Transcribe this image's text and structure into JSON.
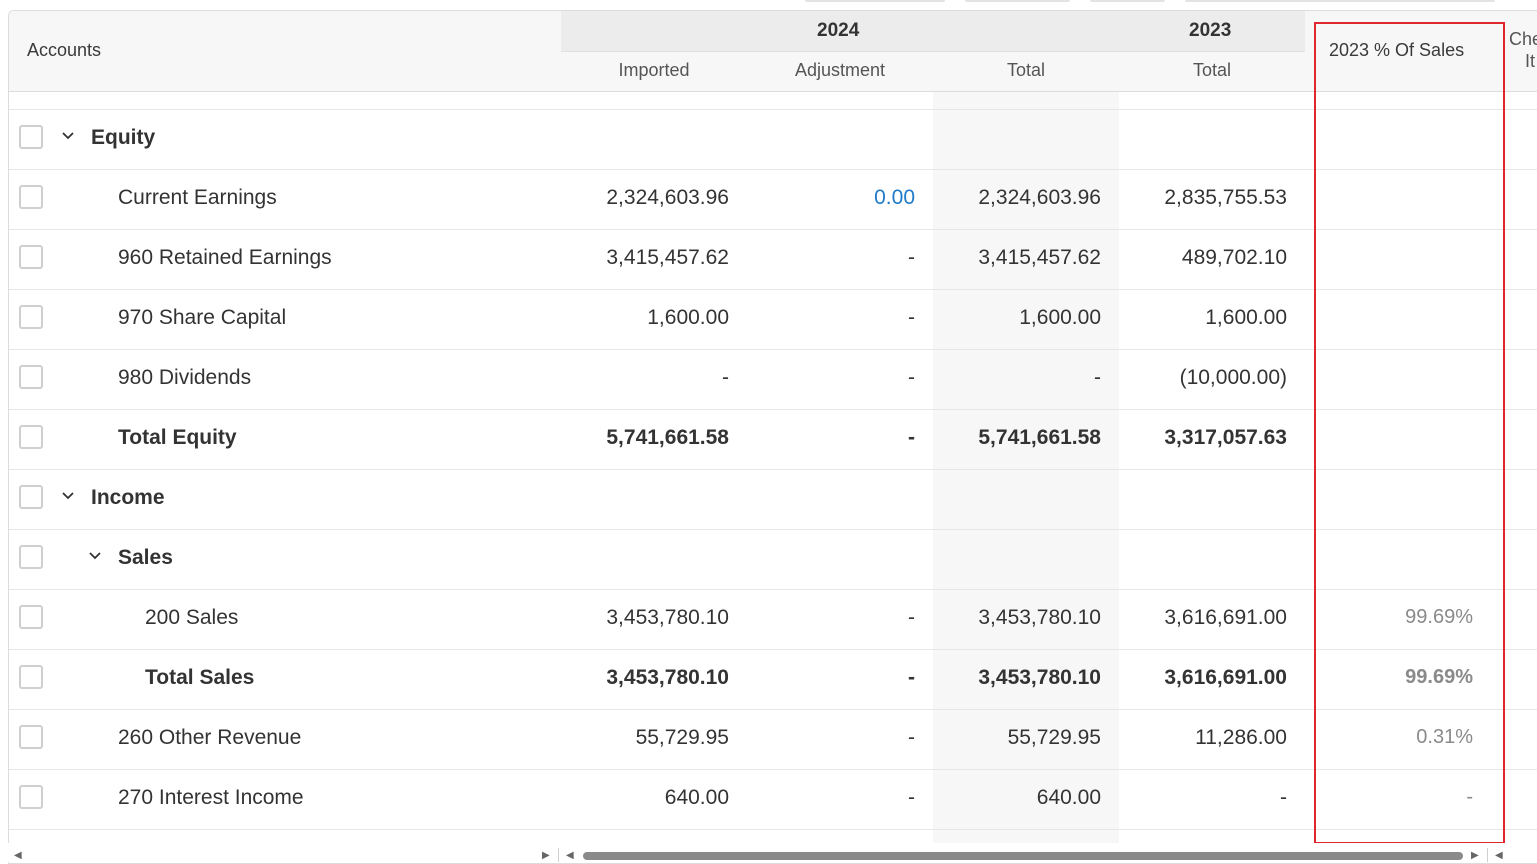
{
  "header": {
    "accounts": "Accounts",
    "year_2024": "2024",
    "year_2023": "2023",
    "col_imported": "Imported",
    "col_adjustment": "Adjustment",
    "col_total_2024": "Total",
    "col_total_2023": "Total",
    "col_pct_sales": "2023 % Of Sales",
    "col_cut_line1": "Che",
    "col_cut_line2": "It"
  },
  "rows": [
    {
      "label": "Equity",
      "imported": "",
      "adjustment": "",
      "total2024": "",
      "total2023": "",
      "pct": ""
    },
    {
      "label": "Current Earnings",
      "imported": "2,324,603.96",
      "adjustment": "0.00",
      "total2024": "2,324,603.96",
      "total2023": "2,835,755.53",
      "pct": ""
    },
    {
      "label": "960 Retained Earnings",
      "imported": "3,415,457.62",
      "adjustment": "-",
      "total2024": "3,415,457.62",
      "total2023": "489,702.10",
      "pct": ""
    },
    {
      "label": "970 Share Capital",
      "imported": "1,600.00",
      "adjustment": "-",
      "total2024": "1,600.00",
      "total2023": "1,600.00",
      "pct": ""
    },
    {
      "label": "980 Dividends",
      "imported": "-",
      "adjustment": "-",
      "total2024": "-",
      "total2023": "(10,000.00)",
      "pct": ""
    },
    {
      "label": "Total Equity",
      "imported": "5,741,661.58",
      "adjustment": "-",
      "total2024": "5,741,661.58",
      "total2023": "3,317,057.63",
      "pct": ""
    },
    {
      "label": "Income",
      "imported": "",
      "adjustment": "",
      "total2024": "",
      "total2023": "",
      "pct": ""
    },
    {
      "label": "Sales",
      "imported": "",
      "adjustment": "",
      "total2024": "",
      "total2023": "",
      "pct": ""
    },
    {
      "label": "200 Sales",
      "imported": "3,453,780.10",
      "adjustment": "-",
      "total2024": "3,453,780.10",
      "total2023": "3,616,691.00",
      "pct": "99.69%"
    },
    {
      "label": "Total Sales",
      "imported": "3,453,780.10",
      "adjustment": "-",
      "total2024": "3,453,780.10",
      "total2023": "3,616,691.00",
      "pct": "99.69%"
    },
    {
      "label": "260 Other Revenue",
      "imported": "55,729.95",
      "adjustment": "-",
      "total2024": "55,729.95",
      "total2023": "11,286.00",
      "pct": "0.31%"
    },
    {
      "label": "270 Interest Income",
      "imported": "640.00",
      "adjustment": "-",
      "total2024": "640.00",
      "total2023": "-",
      "pct": "-"
    }
  ]
}
